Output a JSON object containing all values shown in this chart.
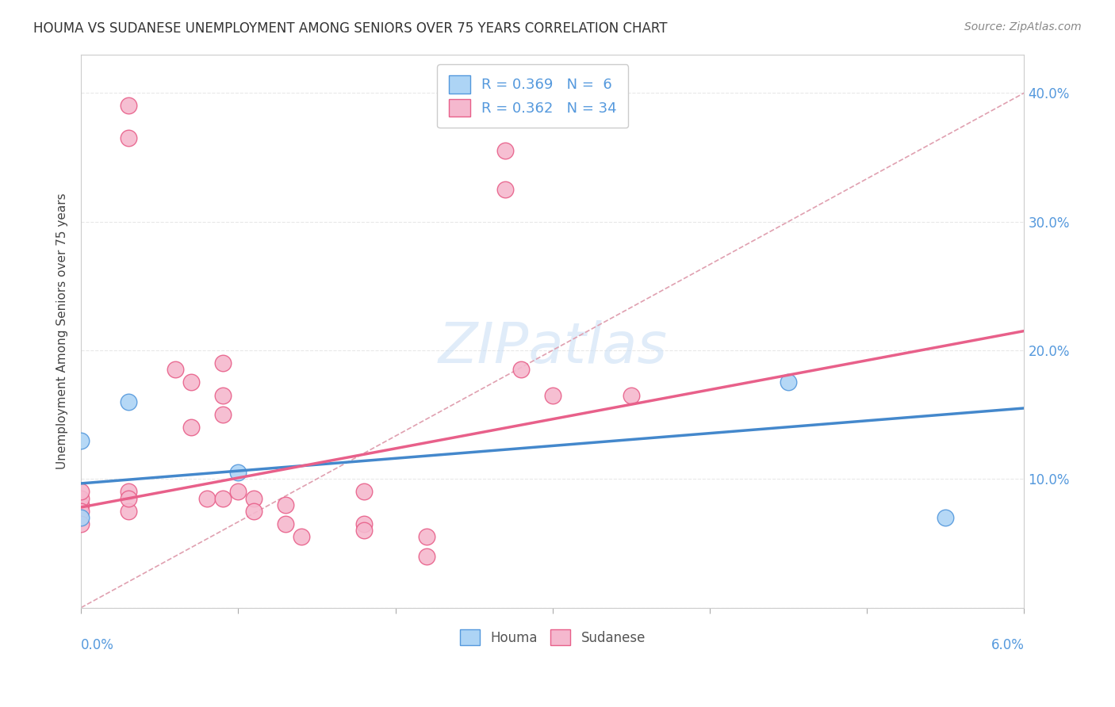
{
  "title": "HOUMA VS SUDANESE UNEMPLOYMENT AMONG SENIORS OVER 75 YEARS CORRELATION CHART",
  "source": "Source: ZipAtlas.com",
  "ylabel": "Unemployment Among Seniors over 75 years",
  "xmin": 0.0,
  "xmax": 0.06,
  "ymin": 0.0,
  "ymax": 0.43,
  "houma_R": 0.369,
  "houma_N": 6,
  "sudanese_R": 0.362,
  "sudanese_N": 34,
  "houma_color": "#add4f5",
  "sudanese_color": "#f5b8ce",
  "houma_edge_color": "#5599dd",
  "sudanese_edge_color": "#e8608a",
  "houma_line_color": "#4488cc",
  "sudanese_line_color": "#e8608a",
  "diagonal_color": "#e0a0b0",
  "grid_color": "#e8e8e8",
  "houma_trend": [
    0.0965,
    0.155
  ],
  "sudanese_trend": [
    0.078,
    0.215
  ],
  "houma_points": [
    [
      0.0,
      0.13
    ],
    [
      0.003,
      0.16
    ],
    [
      0.01,
      0.105
    ],
    [
      0.0,
      0.07
    ],
    [
      0.045,
      0.175
    ],
    [
      0.055,
      0.07
    ]
  ],
  "sudanese_points": [
    [
      0.0,
      0.08
    ],
    [
      0.0,
      0.085
    ],
    [
      0.0,
      0.09
    ],
    [
      0.0,
      0.075
    ],
    [
      0.0,
      0.065
    ],
    [
      0.003,
      0.39
    ],
    [
      0.003,
      0.365
    ],
    [
      0.003,
      0.09
    ],
    [
      0.003,
      0.075
    ],
    [
      0.003,
      0.085
    ],
    [
      0.006,
      0.185
    ],
    [
      0.007,
      0.175
    ],
    [
      0.007,
      0.14
    ],
    [
      0.008,
      0.085
    ],
    [
      0.009,
      0.19
    ],
    [
      0.009,
      0.165
    ],
    [
      0.009,
      0.15
    ],
    [
      0.009,
      0.085
    ],
    [
      0.01,
      0.09
    ],
    [
      0.011,
      0.085
    ],
    [
      0.011,
      0.075
    ],
    [
      0.013,
      0.08
    ],
    [
      0.013,
      0.065
    ],
    [
      0.014,
      0.055
    ],
    [
      0.018,
      0.09
    ],
    [
      0.018,
      0.065
    ],
    [
      0.018,
      0.06
    ],
    [
      0.022,
      0.04
    ],
    [
      0.022,
      0.055
    ],
    [
      0.027,
      0.355
    ],
    [
      0.027,
      0.325
    ],
    [
      0.028,
      0.185
    ],
    [
      0.03,
      0.165
    ],
    [
      0.035,
      0.165
    ]
  ]
}
